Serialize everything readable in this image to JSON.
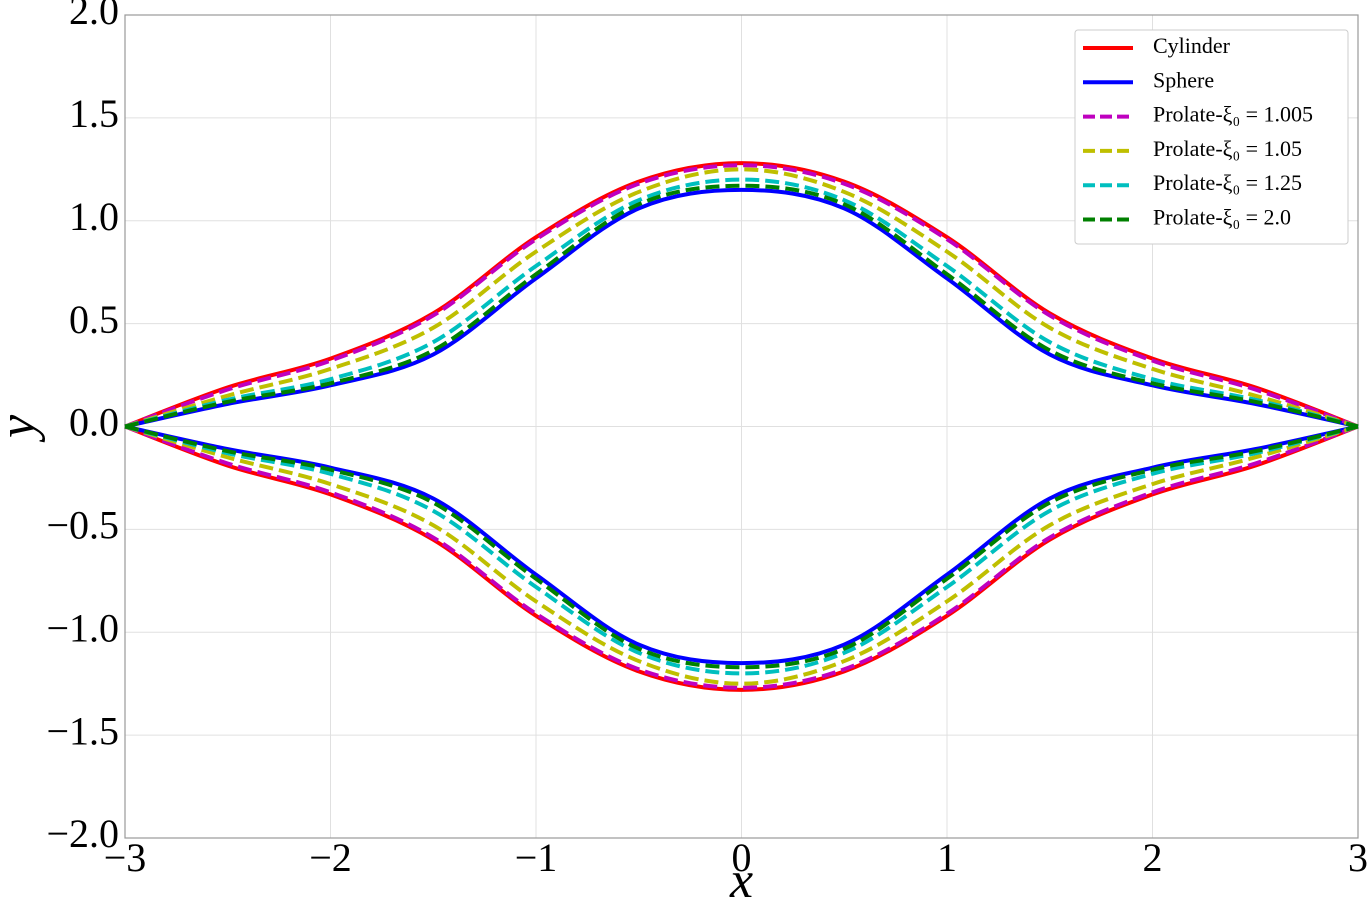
{
  "chart_data": {
    "type": "line",
    "x_label": "x",
    "y_label": "y",
    "x": [
      -3,
      -2.5,
      -2,
      -1.5,
      -1,
      -0.5,
      0,
      0.5,
      1,
      1.5,
      2,
      2.5,
      3
    ],
    "xlim": [
      -3,
      3
    ],
    "xticks": [
      {
        "value": -3,
        "label": "−3"
      },
      {
        "value": -2,
        "label": "−2"
      },
      {
        "value": -1,
        "label": "−1"
      },
      0,
      1,
      2,
      3
    ],
    "ylim": [
      -2,
      2
    ],
    "yticks": [
      {
        "value": -2,
        "label": "−2.0"
      },
      {
        "value": -1.5,
        "label": "−1.5"
      },
      {
        "value": -1,
        "label": "−1.0"
      },
      {
        "value": -0.5,
        "label": "−0.5"
      },
      {
        "value": 0,
        "label": "0.0"
      },
      0.5,
      {
        "value": 1,
        "label": "1.0"
      },
      1.5,
      {
        "value": 2,
        "label": "2.0"
      }
    ],
    "grid": true,
    "legend": "upper right",
    "series": [
      {
        "name": "Cylinder",
        "color": "#ff0000",
        "dashed": false,
        "values": [
          0,
          0.19,
          0.33,
          0.55,
          0.92,
          1.19,
          1.28,
          1.19,
          0.92,
          0.55,
          0.33,
          0.19,
          0
        ],
        "values_lower": [
          0,
          -0.19,
          -0.33,
          -0.55,
          -0.92,
          -1.19,
          -1.28,
          -1.19,
          -0.92,
          -0.55,
          -0.33,
          -0.19,
          0
        ]
      },
      {
        "name": "Sphere",
        "color": "#0000ff",
        "dashed": false,
        "values": [
          0,
          0.11,
          0.2,
          0.35,
          0.72,
          1.06,
          1.15,
          1.06,
          0.72,
          0.35,
          0.2,
          0.11,
          0
        ],
        "values_lower": [
          0,
          -0.11,
          -0.2,
          -0.35,
          -0.72,
          -1.06,
          -1.15,
          -1.06,
          -0.72,
          -0.35,
          -0.2,
          -0.11,
          0
        ]
      },
      {
        "name": "Prolate-ξ₀ = 1.005",
        "color": "#bf00bf",
        "dashed": true,
        "values": [
          0,
          0.18,
          0.32,
          0.54,
          0.91,
          1.18,
          1.27,
          1.18,
          0.91,
          0.54,
          0.32,
          0.18,
          0
        ],
        "values_lower": [
          0,
          -0.18,
          -0.32,
          -0.54,
          -0.91,
          -1.18,
          -1.27,
          -1.18,
          -0.91,
          -0.54,
          -0.32,
          -0.18,
          0
        ]
      },
      {
        "name": "Prolate-ξ₀ = 1.05",
        "color": "#bfbf00",
        "dashed": true,
        "values": [
          0,
          0.15,
          0.28,
          0.48,
          0.85,
          1.14,
          1.25,
          1.14,
          0.85,
          0.48,
          0.28,
          0.15,
          0
        ],
        "values_lower": [
          0,
          -0.15,
          -0.28,
          -0.48,
          -0.85,
          -1.14,
          -1.25,
          -1.14,
          -0.85,
          -0.48,
          -0.28,
          -0.15,
          0
        ]
      },
      {
        "name": "Prolate-ξ₀ = 1.25",
        "color": "#00bfbf",
        "dashed": true,
        "values": [
          0,
          0.13,
          0.23,
          0.41,
          0.78,
          1.1,
          1.2,
          1.1,
          0.78,
          0.41,
          0.23,
          0.13,
          0
        ],
        "values_lower": [
          0,
          -0.13,
          -0.23,
          -0.41,
          -0.78,
          -1.1,
          -1.2,
          -1.1,
          -0.78,
          -0.41,
          -0.23,
          -0.13,
          0
        ]
      },
      {
        "name": "Prolate-ξ₀ = 2.0",
        "color": "#008000",
        "dashed": true,
        "values": [
          0,
          0.12,
          0.21,
          0.37,
          0.74,
          1.08,
          1.17,
          1.08,
          0.74,
          0.37,
          0.21,
          0.12,
          0
        ],
        "values_lower": [
          0,
          -0.12,
          -0.21,
          -0.37,
          -0.74,
          -1.08,
          -1.17,
          -1.08,
          -0.74,
          -0.37,
          -0.21,
          -0.12,
          0
        ]
      }
    ]
  }
}
